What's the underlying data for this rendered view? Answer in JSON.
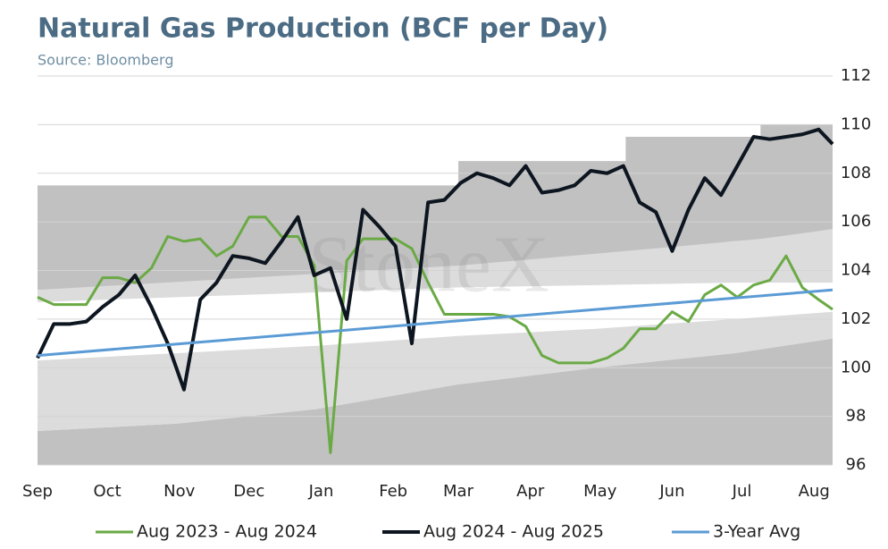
{
  "chart_data": {
    "type": "line",
    "title": "Natural Gas Production (BCF per Day)",
    "subtitle": "Source: Bloomberg",
    "watermark": "StoneX",
    "xlim": [
      0,
      342
    ],
    "xticks": [
      {
        "value": 0,
        "label": "Sep"
      },
      {
        "value": 30,
        "label": "Oct"
      },
      {
        "value": 61,
        "label": "Nov"
      },
      {
        "value": 91,
        "label": "Dec"
      },
      {
        "value": 122,
        "label": "Jan"
      },
      {
        "value": 153,
        "label": "Feb"
      },
      {
        "value": 181,
        "label": "Mar"
      },
      {
        "value": 212,
        "label": "Apr"
      },
      {
        "value": 242,
        "label": "May"
      },
      {
        "value": 273,
        "label": "Jun"
      },
      {
        "value": 303,
        "label": "Jul"
      },
      {
        "value": 334,
        "label": "Aug"
      }
    ],
    "ylim": [
      96,
      112
    ],
    "yticks": [
      96,
      98,
      100,
      102,
      104,
      106,
      108,
      110,
      112
    ],
    "grid": true,
    "legend": "bottom",
    "x": [
      0,
      7,
      14,
      21,
      28,
      35,
      42,
      49,
      56,
      63,
      70,
      77,
      84,
      91,
      98,
      105,
      112,
      119,
      126,
      133,
      140,
      147,
      154,
      161,
      168,
      175,
      182,
      189,
      196,
      203,
      210,
      217,
      224,
      231,
      238,
      245,
      252,
      259,
      266,
      273,
      280,
      287,
      294,
      301,
      308,
      315,
      322,
      329,
      336,
      342
    ],
    "bands": [
      {
        "color": "#c2c1c1",
        "x": [
          0,
          60,
          120,
          180,
          240,
          300,
          342
        ],
        "lower": [
          96,
          96,
          96,
          96,
          96,
          96,
          96
        ],
        "upper": [
          97.4,
          97.7,
          98.3,
          99.3,
          100.0,
          100.6,
          101.2
        ]
      },
      {
        "color": "#dcdcdc",
        "x": [
          0,
          60,
          120,
          180,
          240,
          300,
          342
        ],
        "lower": [
          97.4,
          97.7,
          98.3,
          99.3,
          100.0,
          100.6,
          101.2
        ],
        "upper": [
          100.3,
          100.6,
          100.9,
          101.3,
          101.6,
          102.0,
          102.3
        ]
      },
      {
        "color": "#dcdcdc",
        "x": [
          0,
          60,
          120,
          180,
          240,
          300,
          342
        ],
        "lower": [
          102.7,
          102.9,
          103.1,
          103.3,
          103.4,
          103.5,
          103.5
        ],
        "upper": [
          103.2,
          103.6,
          104.2,
          104.5,
          104.8,
          105.2,
          105.7
        ]
      },
      {
        "color": "#c2c1c1",
        "x": [
          0,
          181,
          181,
          253,
          253,
          311,
          311,
          342
        ],
        "lower": [
          103.2,
          104.2,
          104.2,
          104.8,
          104.8,
          105.3,
          105.3,
          105.7
        ],
        "upper": [
          107.5,
          107.5,
          108.5,
          108.5,
          109.5,
          109.5,
          110,
          110
        ]
      }
    ],
    "series": [
      {
        "name": "Aug 2023 - Aug 2024",
        "color": "#6aaa45",
        "width": 3,
        "values": [
          102.9,
          102.6,
          102.6,
          102.6,
          103.7,
          103.7,
          103.5,
          104.1,
          105.4,
          105.2,
          105.3,
          104.6,
          105.0,
          106.2,
          106.2,
          105.4,
          105.4,
          104.2,
          96.5,
          104.4,
          105.3,
          105.3,
          105.3,
          104.9,
          103.5,
          102.2,
          102.2,
          102.2,
          102.2,
          102.1,
          101.7,
          100.5,
          100.2,
          100.2,
          100.2,
          100.4,
          100.8,
          101.6,
          101.6,
          102.3,
          101.9,
          103.0,
          103.4,
          102.9,
          103.4,
          103.6,
          104.6,
          103.3,
          102.8,
          102.4
        ]
      },
      {
        "name": "Aug 2024 - Aug 2025",
        "color": "#0d1620",
        "width": 4,
        "values": [
          100.4,
          101.8,
          101.8,
          101.9,
          102.5,
          103.0,
          103.8,
          102.5,
          101.0,
          99.1,
          102.8,
          103.5,
          104.6,
          104.5,
          104.3,
          105.2,
          106.2,
          103.8,
          104.1,
          102.0,
          106.5,
          105.8,
          105.0,
          101.0,
          106.8,
          106.9,
          107.6,
          108.0,
          107.8,
          107.5,
          108.3,
          107.2,
          107.3,
          107.5,
          108.1,
          108.0,
          108.3,
          106.8,
          106.4,
          104.8,
          106.5,
          107.8,
          107.1,
          108.3,
          109.5,
          109.4,
          109.5,
          109.6,
          109.8,
          109.2
        ]
      },
      {
        "name": "3-Year Avg",
        "color": "#5b9bd5",
        "width": 3,
        "x": [
          0,
          342
        ],
        "values": [
          100.5,
          103.2
        ]
      }
    ]
  }
}
